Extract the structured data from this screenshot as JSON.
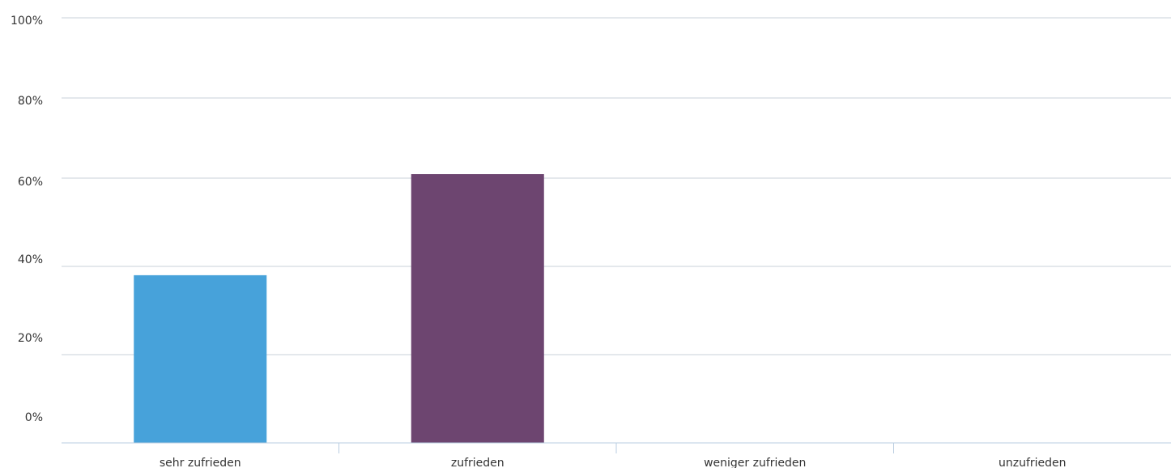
{
  "chart_data": {
    "type": "bar",
    "categories": [
      "sehr zufrieden",
      "zufrieden",
      "weniger zufrieden",
      "unzufrieden"
    ],
    "values": [
      38,
      61,
      0,
      0
    ],
    "colors": [
      "#47a2da",
      "#6d4570",
      "#47a2da",
      "#47a2da"
    ],
    "ylim": [
      0,
      100
    ],
    "y_ticks": [
      "0%",
      "20%",
      "40%",
      "60%",
      "80%",
      "100%"
    ],
    "y_tick_values": [
      0,
      20,
      40,
      60,
      80,
      100
    ],
    "grid": true,
    "title": "",
    "xlabel": "",
    "ylabel": ""
  }
}
